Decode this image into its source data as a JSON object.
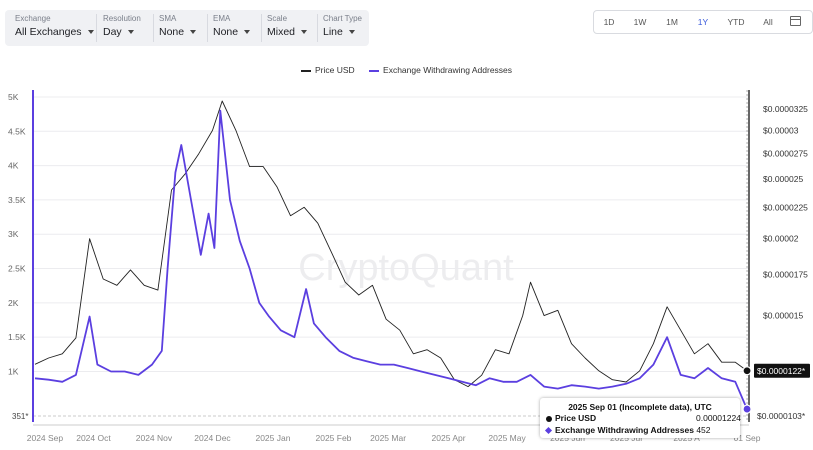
{
  "toolbar": {
    "exchange": {
      "label": "Exchange",
      "value": "All Exchanges"
    },
    "resolution": {
      "label": "Resolution",
      "value": "Day"
    },
    "sma": {
      "label": "SMA",
      "value": "None"
    },
    "ema": {
      "label": "EMA",
      "value": "None"
    },
    "scale": {
      "label": "Scale",
      "value": "Mixed"
    },
    "chart_type": {
      "label": "Chart Type",
      "value": "Line"
    }
  },
  "ranges": [
    "1D",
    "1W",
    "1M",
    "1Y",
    "YTD",
    "All"
  ],
  "active_range": "1Y",
  "watermark": "CryptoQuant",
  "tooltip": {
    "date": "2025 Sep 01",
    "note": "(Incomplete data), UTC",
    "price_label": "Price USD",
    "price_value": "0.00001224",
    "addr_label": "Exchange Withdrawing Addresses",
    "addr_value": "452"
  },
  "chart_data": {
    "type": "line",
    "title": "",
    "x_labels": [
      "2024 Sep",
      "2024 Oct",
      "2024 Nov",
      "2024 Dec",
      "2025 Jan",
      "2025 Feb",
      "2025 Mar",
      "2025 Apr",
      "2025 May",
      "2025 Jun",
      "2025 Jul",
      "2025 A",
      "01 Sep"
    ],
    "left_axis": {
      "ticks": [
        "5K",
        "4.5K",
        "4K",
        "3.5K",
        "3K",
        "2.5K",
        "2K",
        "1.5K",
        "1K"
      ],
      "ylim": [
        351,
        5000
      ],
      "min_marker": "351*"
    },
    "right_axis": {
      "scale": "log",
      "ticks": [
        "$0.0000325",
        "$0.00003",
        "$0.0000275",
        "$0.000025",
        "$0.0000225",
        "$0.00002",
        "$0.0000175",
        "$0.000015"
      ],
      "ylim": [
        1.03e-05,
        3.4e-05
      ],
      "current_label": "$0.0000122*",
      "min_label": "$0.0000103*"
    },
    "series": [
      {
        "name": "Price USD",
        "color": "#222222",
        "axis": "right",
        "points": [
          [
            "2024-09-01",
            1.25e-05
          ],
          [
            "2024-09-08",
            1.28e-05
          ],
          [
            "2024-09-15",
            1.3e-05
          ],
          [
            "2024-09-22",
            1.38e-05
          ],
          [
            "2024-09-29",
            2e-05
          ],
          [
            "2024-10-06",
            1.72e-05
          ],
          [
            "2024-10-13",
            1.68e-05
          ],
          [
            "2024-10-20",
            1.78e-05
          ],
          [
            "2024-10-27",
            1.68e-05
          ],
          [
            "2024-11-03",
            1.65e-05
          ],
          [
            "2024-11-10",
            2.4e-05
          ],
          [
            "2024-11-17",
            2.55e-05
          ],
          [
            "2024-11-24",
            2.75e-05
          ],
          [
            "2024-12-01",
            3e-05
          ],
          [
            "2024-12-06",
            3.35e-05
          ],
          [
            "2024-12-13",
            3e-05
          ],
          [
            "2024-12-20",
            2.62e-05
          ],
          [
            "2024-12-27",
            2.62e-05
          ],
          [
            "2025-01-03",
            2.43e-05
          ],
          [
            "2025-01-10",
            2.18e-05
          ],
          [
            "2025-01-17",
            2.25e-05
          ],
          [
            "2025-01-24",
            2.12e-05
          ],
          [
            "2025-01-31",
            1.9e-05
          ],
          [
            "2025-02-07",
            1.7e-05
          ],
          [
            "2025-02-14",
            1.62e-05
          ],
          [
            "2025-02-21",
            1.68e-05
          ],
          [
            "2025-02-28",
            1.48e-05
          ],
          [
            "2025-03-07",
            1.42e-05
          ],
          [
            "2025-03-14",
            1.3e-05
          ],
          [
            "2025-03-21",
            1.32e-05
          ],
          [
            "2025-03-28",
            1.28e-05
          ],
          [
            "2025-04-04",
            1.18e-05
          ],
          [
            "2025-04-11",
            1.15e-05
          ],
          [
            "2025-04-18",
            1.2e-05
          ],
          [
            "2025-04-25",
            1.32e-05
          ],
          [
            "2025-05-02",
            1.3e-05
          ],
          [
            "2025-05-09",
            1.5e-05
          ],
          [
            "2025-05-13",
            1.7e-05
          ],
          [
            "2025-05-20",
            1.5e-05
          ],
          [
            "2025-05-27",
            1.53e-05
          ],
          [
            "2025-06-03",
            1.35e-05
          ],
          [
            "2025-06-10",
            1.28e-05
          ],
          [
            "2025-06-17",
            1.22e-05
          ],
          [
            "2025-06-24",
            1.18e-05
          ],
          [
            "2025-07-01",
            1.17e-05
          ],
          [
            "2025-07-08",
            1.22e-05
          ],
          [
            "2025-07-15",
            1.35e-05
          ],
          [
            "2025-07-22",
            1.55e-05
          ],
          [
            "2025-07-29",
            1.42e-05
          ],
          [
            "2025-08-05",
            1.3e-05
          ],
          [
            "2025-08-12",
            1.35e-05
          ],
          [
            "2025-08-19",
            1.26e-05
          ],
          [
            "2025-08-26",
            1.26e-05
          ],
          [
            "2025-09-01",
            1.22e-05
          ]
        ]
      },
      {
        "name": "Exchange Withdrawing Addresses",
        "color": "#5b3fe0",
        "axis": "left",
        "points": [
          [
            "2024-09-01",
            900
          ],
          [
            "2024-09-08",
            880
          ],
          [
            "2024-09-15",
            850
          ],
          [
            "2024-09-22",
            950
          ],
          [
            "2024-09-29",
            1800
          ],
          [
            "2024-10-03",
            1100
          ],
          [
            "2024-10-10",
            1000
          ],
          [
            "2024-10-17",
            1000
          ],
          [
            "2024-10-24",
            950
          ],
          [
            "2024-10-31",
            1100
          ],
          [
            "2024-11-05",
            1300
          ],
          [
            "2024-11-08",
            2500
          ],
          [
            "2024-11-12",
            3900
          ],
          [
            "2024-11-15",
            4300
          ],
          [
            "2024-11-20",
            3500
          ],
          [
            "2024-11-25",
            2700
          ],
          [
            "2024-11-29",
            3300
          ],
          [
            "2024-12-02",
            2800
          ],
          [
            "2024-12-05",
            4800
          ],
          [
            "2024-12-10",
            3500
          ],
          [
            "2024-12-15",
            2900
          ],
          [
            "2024-12-20",
            2500
          ],
          [
            "2024-12-25",
            2000
          ],
          [
            "2024-12-30",
            1800
          ],
          [
            "2025-01-05",
            1600
          ],
          [
            "2025-01-12",
            1500
          ],
          [
            "2025-01-18",
            2200
          ],
          [
            "2025-01-22",
            1700
          ],
          [
            "2025-01-28",
            1500
          ],
          [
            "2025-02-04",
            1300
          ],
          [
            "2025-02-11",
            1200
          ],
          [
            "2025-02-18",
            1150
          ],
          [
            "2025-02-25",
            1100
          ],
          [
            "2025-03-04",
            1100
          ],
          [
            "2025-03-11",
            1050
          ],
          [
            "2025-03-18",
            1000
          ],
          [
            "2025-03-25",
            950
          ],
          [
            "2025-04-01",
            900
          ],
          [
            "2025-04-08",
            850
          ],
          [
            "2025-04-15",
            800
          ],
          [
            "2025-04-22",
            900
          ],
          [
            "2025-04-29",
            850
          ],
          [
            "2025-05-06",
            850
          ],
          [
            "2025-05-13",
            950
          ],
          [
            "2025-05-20",
            780
          ],
          [
            "2025-05-27",
            750
          ],
          [
            "2025-06-03",
            800
          ],
          [
            "2025-06-10",
            780
          ],
          [
            "2025-06-17",
            750
          ],
          [
            "2025-06-24",
            780
          ],
          [
            "2025-07-01",
            820
          ],
          [
            "2025-07-08",
            900
          ],
          [
            "2025-07-15",
            1100
          ],
          [
            "2025-07-22",
            1500
          ],
          [
            "2025-07-29",
            950
          ],
          [
            "2025-08-05",
            900
          ],
          [
            "2025-08-12",
            1050
          ],
          [
            "2025-08-19",
            900
          ],
          [
            "2025-08-26",
            850
          ],
          [
            "2025-09-01",
            452
          ]
        ]
      }
    ],
    "legend_position": "top-center",
    "grid": "horizontal"
  }
}
